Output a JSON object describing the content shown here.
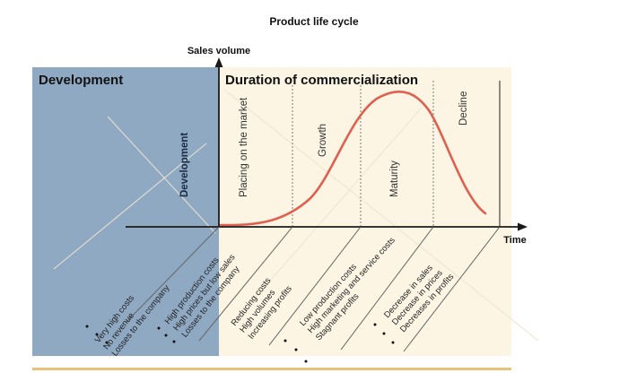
{
  "title": "Product life cycle",
  "y_axis_label": "Sales volume",
  "x_axis_label": "Time",
  "regions": {
    "development": "Development",
    "commercialization": "Duration of commercialization"
  },
  "phases": [
    {
      "label": "Development"
    },
    {
      "label": "Placing on the market"
    },
    {
      "label": "Growth"
    },
    {
      "label": "Maturity"
    },
    {
      "label": "Decline"
    }
  ],
  "notes": [
    [
      "Very high costs",
      "No revenue",
      "Losses to the company"
    ],
    [
      "High production costs",
      "High prices but low sales",
      "Losses to the company"
    ],
    [
      "Reducing costs",
      "High volumes",
      "Increasing profits"
    ],
    [
      "Low production costs",
      "High marketing and service costs",
      "Stagnant profits"
    ],
    [
      "Decrease in sales",
      "Decrease in prices",
      "Decreases in profits"
    ]
  ],
  "colors": {
    "development_bg": "#8fa9c3",
    "commercialization_bg": "#fcf5e4",
    "curve": "#e06050",
    "axis": "#1a1a1a"
  }
}
